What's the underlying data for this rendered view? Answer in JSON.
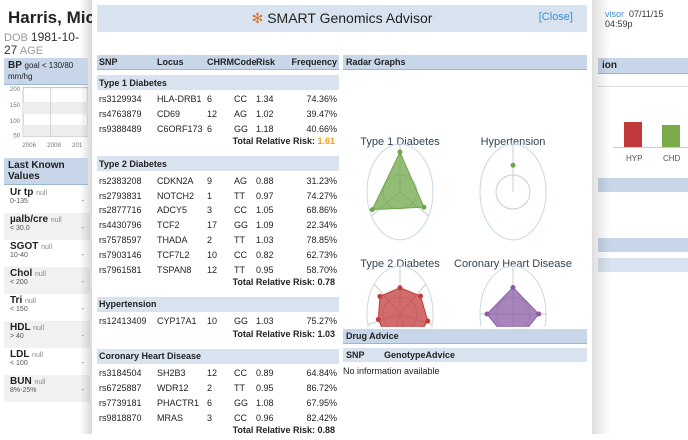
{
  "background": {
    "patient_name": "Harris, Michell",
    "dob_label": "DOB",
    "dob": "1981-10-27",
    "age_label": "AGE",
    "bp": {
      "label": "BP",
      "goal": "goal < 130/80",
      "unit": "mm/hg",
      "y_ticks": [
        "200",
        "150",
        "100",
        "50"
      ],
      "x_ticks": [
        "2006",
        "2008",
        "201"
      ]
    },
    "last_known_values": {
      "title": "Last Known Values",
      "items": [
        {
          "name": "Ur tp",
          "value": "null",
          "range": "0-135",
          "reading": "-"
        },
        {
          "name": "µalb/cre",
          "value": "null",
          "range": "< 30.0",
          "reading": "-"
        },
        {
          "name": "SGOT",
          "value": "null",
          "range": "10-40",
          "reading": "-"
        },
        {
          "name": "Chol",
          "value": "null",
          "range": "< 200",
          "reading": "-"
        },
        {
          "name": "Tri",
          "value": "null",
          "range": "< 150",
          "reading": "-"
        },
        {
          "name": "HDL",
          "value": "null",
          "range": "> 40",
          "reading": "-"
        },
        {
          "name": "LDL",
          "value": "null",
          "range": "< 100",
          "reading": "-"
        },
        {
          "name": "BUN",
          "value": "null",
          "range": "8%-25%",
          "reading": "-"
        }
      ]
    },
    "top_right": {
      "link": "visor",
      "datetime": "07/11/15 04:59p"
    },
    "right_panel": {
      "title": "ion",
      "bars": [
        {
          "label": "HYP",
          "color": "#c0393b"
        },
        {
          "label": "CHD",
          "color": "#7aab4a"
        }
      ]
    }
  },
  "modal": {
    "title": "SMART Genomics Advisor",
    "close_label": "[Close]",
    "columns": [
      "SNP",
      "Locus",
      "CHRM",
      "Code",
      "Risk",
      "Frequency"
    ],
    "total_label": "Total Relative Risk:",
    "sections": [
      {
        "name": "Type 1 Diabetes",
        "color": "#6fa64a",
        "total": "1.61",
        "total_highlight": "#f0a020",
        "rows": [
          [
            "rs3129934",
            "HLA-DRB1",
            "6",
            "CC",
            "1.34",
            "74.36%"
          ],
          [
            "rs4763879",
            "CD69",
            "12",
            "AG",
            "1.02",
            "39.47%"
          ],
          [
            "rs9388489",
            "C6ORF173",
            "6",
            "GG",
            "1.18",
            "40.66%"
          ]
        ]
      },
      {
        "name": "Type 2 Diabetes",
        "color": "#c33b3b",
        "total": "0.78",
        "rows": [
          [
            "rs2383208",
            "CDKN2A",
            "9",
            "AG",
            "0.88",
            "31.23%"
          ],
          [
            "rs2793831",
            "NOTCH2",
            "1",
            "TT",
            "0.97",
            "74.27%"
          ],
          [
            "rs2877716",
            "ADCY5",
            "3",
            "CC",
            "1.05",
            "68.86%"
          ],
          [
            "rs4430796",
            "TCF2",
            "17",
            "GG",
            "1.09",
            "22.34%"
          ],
          [
            "rs7578597",
            "THADA",
            "2",
            "TT",
            "1.03",
            "78.85%"
          ],
          [
            "rs7903146",
            "TCF7L2",
            "10",
            "CC",
            "0.82",
            "62.73%"
          ],
          [
            "rs7961581",
            "TSPAN8",
            "12",
            "TT",
            "0.95",
            "58.70%"
          ]
        ]
      },
      {
        "name": "Hypertension",
        "color": "#6fa64a",
        "total": "1.03",
        "rows": [
          [
            "rs12413409",
            "CYP17A1",
            "10",
            "GG",
            "1.03",
            "75.27%"
          ]
        ]
      },
      {
        "name": "Coronary Heart Disease",
        "color": "#8a5ca5",
        "total": "0.88",
        "rows": [
          [
            "rs3184504",
            "SH2B3",
            "12",
            "CC",
            "0.89",
            "64.84%"
          ],
          [
            "rs6725887",
            "WDR12",
            "2",
            "TT",
            "0.95",
            "86.72%"
          ],
          [
            "rs7739181",
            "PHACTR1",
            "6",
            "GG",
            "1.08",
            "67.95%"
          ],
          [
            "rs9818870",
            "MRAS",
            "3",
            "CC",
            "0.96",
            "82.42%"
          ]
        ]
      }
    ],
    "radar": {
      "title": "Radar Graphs"
    },
    "drug_advice": {
      "title": "Drug Advice",
      "columns": [
        "SNP",
        "GenotypeAdvice"
      ],
      "empty": "No information available"
    }
  }
}
